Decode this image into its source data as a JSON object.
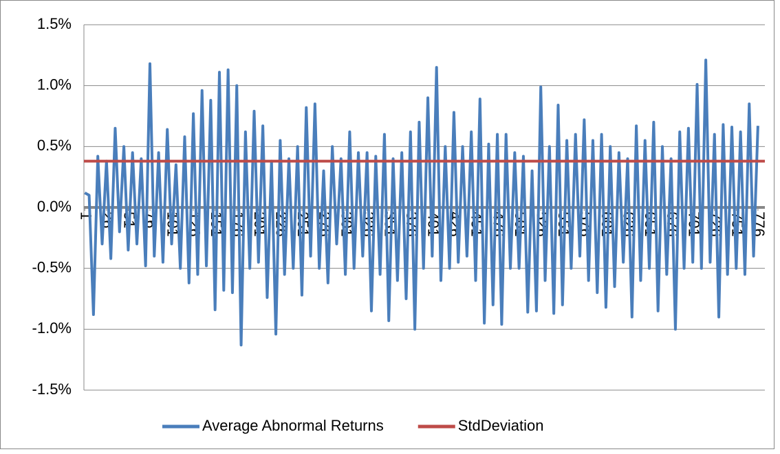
{
  "chart_data": {
    "type": "line",
    "xlim": [
      0,
      784
    ],
    "xticks": [
      1,
      26,
      51,
      76,
      101,
      126,
      151,
      176,
      201,
      226,
      251,
      276,
      301,
      326,
      351,
      376,
      401,
      426,
      451,
      476,
      501,
      526,
      551,
      576,
      601,
      626,
      651,
      676,
      701,
      726,
      751,
      776
    ],
    "ylim": [
      -1.5,
      1.5
    ],
    "yticks": [
      {
        "value": -1.5,
        "label": "-1.5%"
      },
      {
        "value": -1.0,
        "label": "-1.0%"
      },
      {
        "value": -0.5,
        "label": "-0.5%"
      },
      {
        "value": 0.0,
        "label": "0.0%"
      },
      {
        "value": 0.5,
        "label": "0.5%"
      },
      {
        "value": 1.0,
        "label": "1.0%"
      },
      {
        "value": 1.5,
        "label": "1.5%"
      }
    ],
    "grid": true,
    "legend": "bottom",
    "series": [
      {
        "name": "Average Abnormal Returns",
        "color": "#4a7ebb",
        "x": [
          1,
          6,
          11,
          16,
          21,
          26,
          31,
          36,
          41,
          46,
          51,
          56,
          61,
          66,
          71,
          76,
          81,
          86,
          91,
          96,
          101,
          106,
          111,
          116,
          121,
          126,
          131,
          136,
          141,
          146,
          151,
          156,
          161,
          166,
          171,
          176,
          181,
          186,
          191,
          196,
          201,
          206,
          211,
          216,
          221,
          226,
          231,
          236,
          241,
          246,
          251,
          256,
          261,
          266,
          271,
          276,
          281,
          286,
          291,
          296,
          301,
          306,
          311,
          316,
          321,
          326,
          331,
          336,
          341,
          346,
          351,
          356,
          361,
          366,
          371,
          376,
          381,
          386,
          391,
          396,
          401,
          406,
          411,
          416,
          421,
          426,
          431,
          436,
          441,
          446,
          451,
          456,
          461,
          466,
          471,
          476,
          481,
          486,
          491,
          496,
          501,
          506,
          511,
          516,
          521,
          526,
          531,
          536,
          541,
          546,
          551,
          556,
          561,
          566,
          571,
          576,
          581,
          586,
          591,
          596,
          601,
          606,
          611,
          616,
          621,
          626,
          631,
          636,
          641,
          646,
          651,
          656,
          661,
          666,
          671,
          676,
          681,
          686,
          691,
          696,
          701,
          706,
          711,
          716,
          721,
          726,
          731,
          736,
          741,
          746,
          751,
          756,
          761,
          766,
          771,
          776
        ],
        "values": [
          0.12,
          0.1,
          -0.88,
          0.42,
          -0.3,
          0.38,
          -0.42,
          0.65,
          -0.2,
          0.5,
          -0.35,
          0.45,
          -0.3,
          0.4,
          -0.48,
          1.18,
          -0.4,
          0.45,
          -0.45,
          0.64,
          -0.3,
          0.35,
          -0.5,
          0.58,
          -0.62,
          0.77,
          -0.55,
          0.96,
          -0.48,
          0.88,
          -0.84,
          1.11,
          -0.68,
          1.13,
          -0.7,
          1.0,
          -1.13,
          0.62,
          -0.5,
          0.79,
          -0.45,
          0.67,
          -0.74,
          0.38,
          -1.04,
          0.55,
          -0.55,
          0.4,
          -0.5,
          0.5,
          -0.72,
          0.82,
          -0.4,
          0.85,
          -0.5,
          0.3,
          -0.62,
          0.5,
          -0.3,
          0.4,
          -0.55,
          0.62,
          -0.5,
          0.45,
          -0.4,
          0.45,
          -0.85,
          0.42,
          -0.55,
          0.6,
          -0.93,
          0.4,
          -0.6,
          0.45,
          -0.75,
          0.62,
          -1.0,
          0.7,
          -0.5,
          0.9,
          -0.4,
          1.15,
          -0.6,
          0.5,
          -0.5,
          0.78,
          -0.45,
          0.5,
          -0.4,
          0.62,
          -0.6,
          0.89,
          -0.95,
          0.52,
          -0.8,
          0.6,
          -0.96,
          0.6,
          -0.5,
          0.45,
          -0.5,
          0.42,
          -0.86,
          0.3,
          -0.85,
          0.99,
          -0.6,
          0.5,
          -0.87,
          0.84,
          -0.8,
          0.55,
          -0.5,
          0.6,
          -0.4,
          0.72,
          -0.6,
          0.55,
          -0.7,
          0.6,
          -0.82,
          0.5,
          -0.65,
          0.45,
          -0.45,
          0.4,
          -0.9,
          0.67,
          -0.6,
          0.55,
          -0.5,
          0.7,
          -0.85,
          0.5,
          -0.55,
          0.4,
          -1.0,
          0.62,
          -0.5,
          0.65,
          -0.45,
          1.01,
          -0.5,
          1.21,
          -0.45,
          0.6,
          -0.9,
          0.68,
          -0.55,
          0.66,
          -0.5,
          0.62,
          -0.55,
          0.85,
          -0.4,
          0.67
        ]
      },
      {
        "name": "StdDeviation",
        "color": "#be4b48",
        "x": [
          0,
          784
        ],
        "values": [
          0.38,
          0.38
        ]
      }
    ]
  }
}
